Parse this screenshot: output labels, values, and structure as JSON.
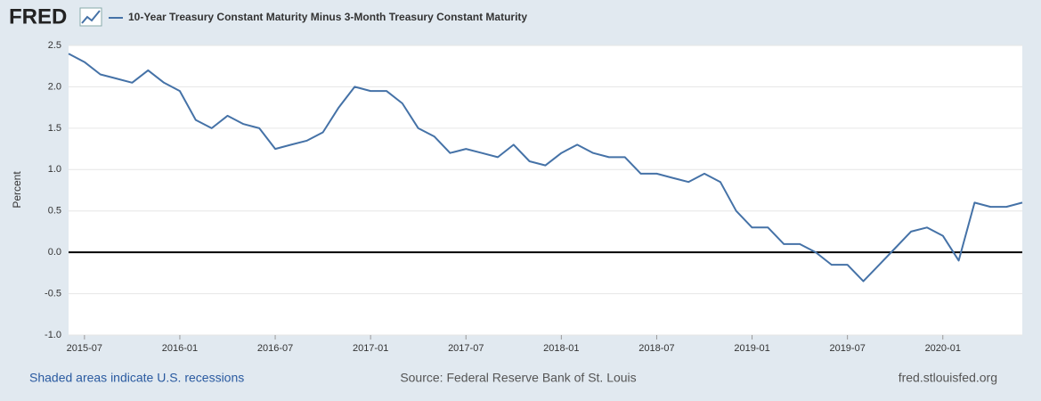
{
  "header": {
    "logo": "FRED"
  },
  "footer": {
    "left": "Shaded areas indicate U.S. recessions",
    "center": "Source: Federal Reserve Bank of St. Louis",
    "right": "fred.stlouisfed.org"
  },
  "chart_data": {
    "type": "line",
    "ylabel": "Percent",
    "x": [
      "2015-06",
      "2015-07",
      "2015-08",
      "2015-09",
      "2015-10",
      "2015-11",
      "2015-12",
      "2016-01",
      "2016-02",
      "2016-03",
      "2016-04",
      "2016-05",
      "2016-06",
      "2016-07",
      "2016-08",
      "2016-09",
      "2016-10",
      "2016-11",
      "2016-12",
      "2017-01",
      "2017-02",
      "2017-03",
      "2017-04",
      "2017-05",
      "2017-06",
      "2017-07",
      "2017-08",
      "2017-09",
      "2017-10",
      "2017-11",
      "2017-12",
      "2018-01",
      "2018-02",
      "2018-03",
      "2018-04",
      "2018-05",
      "2018-06",
      "2018-07",
      "2018-08",
      "2018-09",
      "2018-10",
      "2018-11",
      "2018-12",
      "2019-01",
      "2019-02",
      "2019-03",
      "2019-04",
      "2019-05",
      "2019-06",
      "2019-07",
      "2019-08",
      "2019-09",
      "2019-10",
      "2019-11",
      "2019-12",
      "2020-01",
      "2020-02",
      "2020-03",
      "2020-04",
      "2020-05",
      "2020-06"
    ],
    "series": [
      {
        "name": "10-Year Treasury Constant Maturity Minus 3-Month Treasury Constant Maturity",
        "color": "#4572a7",
        "values": [
          2.4,
          2.3,
          2.15,
          2.1,
          2.05,
          2.2,
          2.05,
          1.95,
          1.6,
          1.5,
          1.65,
          1.55,
          1.5,
          1.25,
          1.3,
          1.35,
          1.45,
          1.75,
          2.0,
          1.95,
          1.95,
          1.8,
          1.5,
          1.4,
          1.2,
          1.25,
          1.2,
          1.15,
          1.3,
          1.1,
          1.05,
          1.2,
          1.3,
          1.2,
          1.15,
          1.15,
          0.95,
          0.95,
          0.9,
          0.85,
          0.95,
          0.85,
          0.5,
          0.3,
          0.3,
          0.1,
          0.1,
          0.0,
          -0.15,
          -0.15,
          -0.35,
          -0.15,
          0.05,
          0.25,
          0.3,
          0.2,
          -0.1,
          0.6,
          0.55,
          0.55,
          0.6
        ]
      }
    ],
    "xlim": [
      "2015-06",
      "2020-06"
    ],
    "xticks": [
      "2015-07",
      "2016-01",
      "2016-07",
      "2017-01",
      "2017-07",
      "2018-01",
      "2018-07",
      "2019-01",
      "2019-07",
      "2020-01"
    ],
    "ylim": [
      -1,
      2.5
    ],
    "yticks": [
      {
        "value": -1,
        "label": "-1.0"
      },
      -0.5,
      {
        "value": 0,
        "label": "0.0"
      },
      0.5,
      {
        "value": 1,
        "label": "1.0"
      },
      1.5,
      {
        "value": 2,
        "label": "2.0"
      },
      2.5
    ],
    "grid": true,
    "zero_line_color": "#000000"
  }
}
